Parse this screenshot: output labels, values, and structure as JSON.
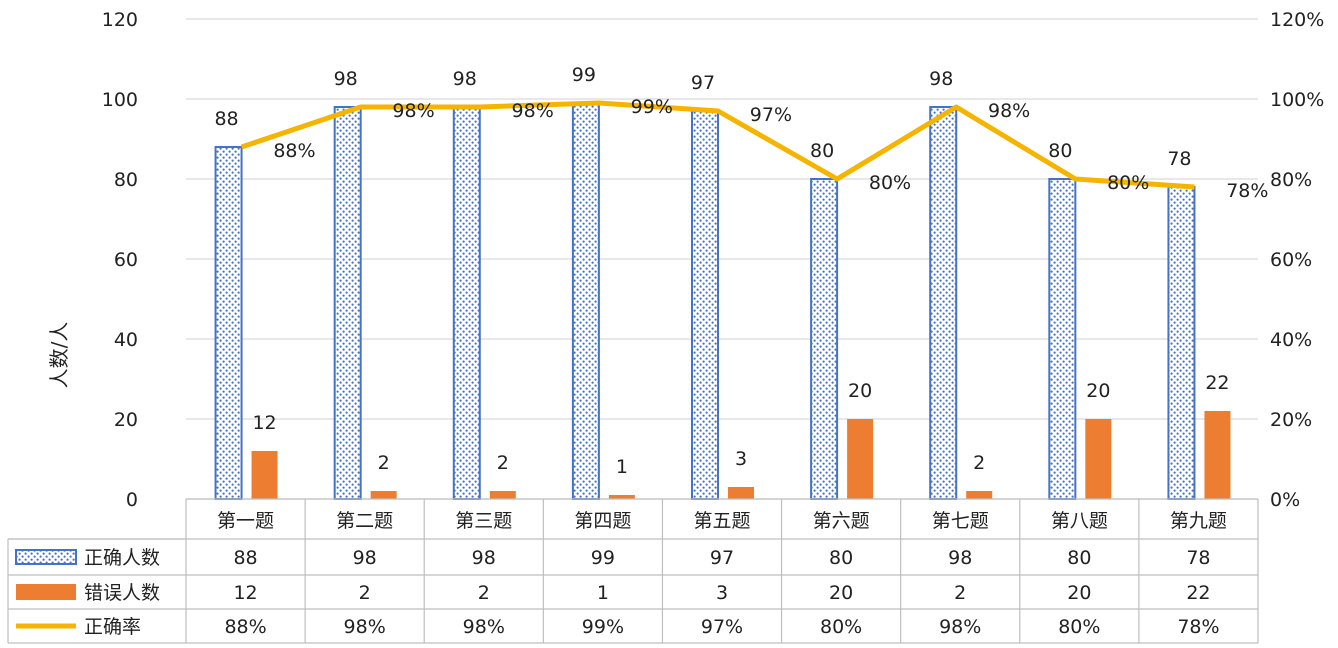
{
  "chart_data": {
    "type": "bar",
    "categories": [
      "第一题",
      "第二题",
      "第三题",
      "第四题",
      "第五题",
      "第六题",
      "第七题",
      "第八题",
      "第九题"
    ],
    "series": [
      {
        "name": "正确人数",
        "type": "bar",
        "axis": "left",
        "pattern": "dotted",
        "color": "#4472C4",
        "values": [
          88,
          98,
          98,
          99,
          97,
          80,
          98,
          80,
          78
        ]
      },
      {
        "name": "错误人数",
        "type": "bar",
        "axis": "left",
        "color": "#ED7D31",
        "values": [
          12,
          2,
          2,
          1,
          3,
          20,
          2,
          20,
          22
        ]
      },
      {
        "name": "正确率",
        "type": "line",
        "axis": "right",
        "color": "#F5B400",
        "values": [
          88,
          98,
          98,
          99,
          97,
          80,
          98,
          80,
          78
        ],
        "labels": [
          "88%",
          "98%",
          "98%",
          "99%",
          "97%",
          "80%",
          "98%",
          "80%",
          "78%"
        ]
      }
    ],
    "ylabel": "人数/人",
    "ylim": [
      0,
      120
    ],
    "yticks": [
      "0",
      "20",
      "40",
      "60",
      "80",
      "100",
      "120"
    ],
    "y2lim": [
      0,
      120
    ],
    "y2ticks": [
      "0%",
      "20%",
      "40%",
      "60%",
      "80%",
      "100%",
      "120%"
    ],
    "grid": true,
    "legend": "data-table-bottom"
  }
}
